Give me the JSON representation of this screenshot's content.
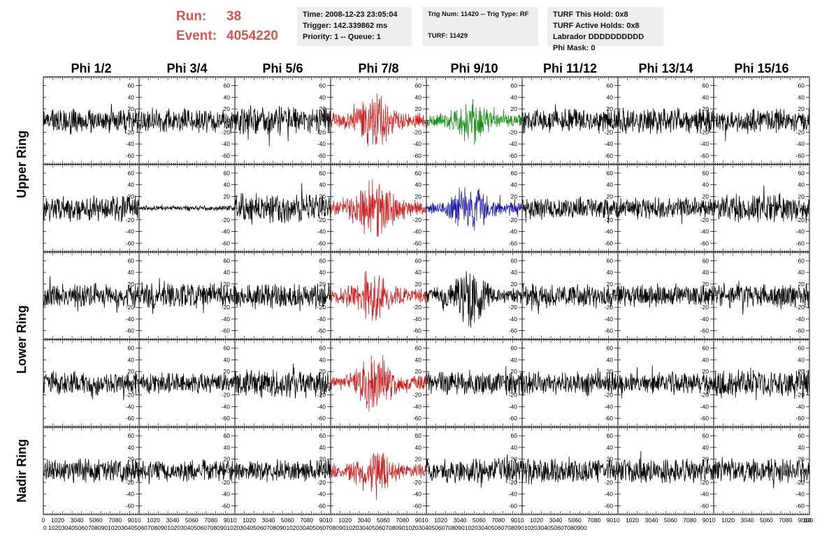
{
  "header": {
    "run_label": "Run:",
    "run_value": "38",
    "event_label": "Event:",
    "event_value": "4054220",
    "time_box": [
      "Time: 2008-12-23 23:05:04",
      "Trigger: 142.339862 ms",
      "Priority: 1 -- Queue: 1"
    ],
    "trig_box": [
      "Trig Num: 11420 -- Trig Type: RF",
      "TURF: 11429"
    ],
    "turf_box": [
      "TURF This Hold: 0x8",
      "TURF Active Holds: 0x8",
      "Labrador DDDDDDDDDD",
      "Phi Mask: 0"
    ]
  },
  "colors": {
    "header_red": "#d9534f",
    "box_bg": "#eeeeee",
    "trace_black": "#000000",
    "trace_red": "#cc2222",
    "trace_green": "#1a8c1a",
    "trace_blue": "#1a1aaa"
  },
  "chart_data": {
    "type": "line",
    "grid": false,
    "column_titles": [
      "Phi 1/2",
      "Phi 3/4",
      "Phi 5/6",
      "Phi 7/8",
      "Phi 9/10",
      "Phi 11/12",
      "Phi 13/14",
      "Phi 15/16"
    ],
    "row_titles": [
      "Upper Ring",
      "Lower Ring",
      "Nadir Ring"
    ],
    "row_groups": [
      2,
      2,
      1
    ],
    "xlim": [
      0,
      100
    ],
    "ylim": [
      -75,
      75
    ],
    "x_ticks": [
      0,
      10,
      20,
      30,
      40,
      50,
      60,
      70,
      80,
      90,
      100
    ],
    "y_ticks": [
      -60,
      -40,
      -20,
      0,
      20,
      40,
      60
    ],
    "x_tick_label_strip": [
      "0",
      "1020",
      "3040",
      "5060",
      "7080",
      "9010",
      "1020",
      "3040",
      "5060",
      "7080",
      "9010",
      "1020",
      "3040",
      "5060",
      "7080",
      "9010",
      "1020",
      "3040",
      "5060",
      "7080",
      "9010",
      "1020",
      "3040",
      "5060",
      "7080",
      "9010",
      "1020",
      "3040",
      "5060",
      "7080",
      "9010",
      "1020",
      "3040",
      "5060",
      "7080",
      "9010",
      "1020",
      "3040",
      "5060",
      "7080",
      "9010",
      "100"
    ],
    "x_tick_label_strip_compact": "0 1020304050607080901020304050607080901020304050607080901020304050607080901020304050607080901020304050607080901020304050607080901020304050607080901020304050607080900",
    "panels": [
      {
        "row": 0,
        "col": 0,
        "color": "black",
        "amp": 20,
        "burst": 0
      },
      {
        "row": 0,
        "col": 1,
        "color": "black",
        "amp": 20,
        "burst": 0
      },
      {
        "row": 0,
        "col": 2,
        "color": "black",
        "amp": 25,
        "burst": 0
      },
      {
        "row": 0,
        "col": 3,
        "color": "red",
        "amp": 22,
        "burst": 38
      },
      {
        "row": 0,
        "col": 4,
        "color": "green",
        "amp": 18,
        "burst": 30
      },
      {
        "row": 0,
        "col": 5,
        "color": "black",
        "amp": 20,
        "burst": 0
      },
      {
        "row": 0,
        "col": 6,
        "color": "black",
        "amp": 22,
        "burst": 0
      },
      {
        "row": 0,
        "col": 7,
        "color": "black",
        "amp": 20,
        "burst": 0
      },
      {
        "row": 1,
        "col": 0,
        "color": "black",
        "amp": 22,
        "burst": 0
      },
      {
        "row": 1,
        "col": 1,
        "color": "black",
        "amp": 4,
        "burst": 0
      },
      {
        "row": 1,
        "col": 2,
        "color": "black",
        "amp": 26,
        "burst": 0
      },
      {
        "row": 1,
        "col": 3,
        "color": "red",
        "amp": 24,
        "burst": 45
      },
      {
        "row": 1,
        "col": 4,
        "color": "blue",
        "amp": 20,
        "burst": 28
      },
      {
        "row": 1,
        "col": 5,
        "color": "black",
        "amp": 18,
        "burst": 0
      },
      {
        "row": 1,
        "col": 6,
        "color": "black",
        "amp": 18,
        "burst": 0
      },
      {
        "row": 1,
        "col": 7,
        "color": "black",
        "amp": 24,
        "burst": 0
      },
      {
        "row": 2,
        "col": 0,
        "color": "black",
        "amp": 20,
        "burst": 0
      },
      {
        "row": 2,
        "col": 1,
        "color": "black",
        "amp": 22,
        "burst": 0
      },
      {
        "row": 2,
        "col": 2,
        "color": "black",
        "amp": 22,
        "burst": 0
      },
      {
        "row": 2,
        "col": 3,
        "color": "red",
        "amp": 22,
        "burst": 38
      },
      {
        "row": 2,
        "col": 4,
        "color": "black",
        "amp": 20,
        "burst": 40
      },
      {
        "row": 2,
        "col": 5,
        "color": "black",
        "amp": 20,
        "burst": 0
      },
      {
        "row": 2,
        "col": 6,
        "color": "black",
        "amp": 20,
        "burst": 0
      },
      {
        "row": 2,
        "col": 7,
        "color": "black",
        "amp": 20,
        "burst": 0
      },
      {
        "row": 3,
        "col": 0,
        "color": "black",
        "amp": 20,
        "burst": 0
      },
      {
        "row": 3,
        "col": 1,
        "color": "black",
        "amp": 18,
        "burst": 0
      },
      {
        "row": 3,
        "col": 2,
        "color": "black",
        "amp": 24,
        "burst": 0
      },
      {
        "row": 3,
        "col": 3,
        "color": "red",
        "amp": 20,
        "burst": 42
      },
      {
        "row": 3,
        "col": 4,
        "color": "black",
        "amp": 20,
        "burst": 0
      },
      {
        "row": 3,
        "col": 5,
        "color": "black",
        "amp": 20,
        "burst": 0
      },
      {
        "row": 3,
        "col": 6,
        "color": "black",
        "amp": 18,
        "burst": 0
      },
      {
        "row": 3,
        "col": 7,
        "color": "black",
        "amp": 24,
        "burst": 0
      },
      {
        "row": 4,
        "col": 0,
        "color": "black",
        "amp": 20,
        "burst": 0
      },
      {
        "row": 4,
        "col": 1,
        "color": "black",
        "amp": 18,
        "burst": 0
      },
      {
        "row": 4,
        "col": 2,
        "color": "black",
        "amp": 18,
        "burst": 0
      },
      {
        "row": 4,
        "col": 3,
        "color": "red",
        "amp": 20,
        "burst": 30
      },
      {
        "row": 4,
        "col": 4,
        "color": "black",
        "amp": 22,
        "burst": 0
      },
      {
        "row": 4,
        "col": 5,
        "color": "black",
        "amp": 22,
        "burst": 0
      },
      {
        "row": 4,
        "col": 6,
        "color": "black",
        "amp": 20,
        "burst": 0
      },
      {
        "row": 4,
        "col": 7,
        "color": "black",
        "amp": 20,
        "burst": 0
      }
    ]
  }
}
